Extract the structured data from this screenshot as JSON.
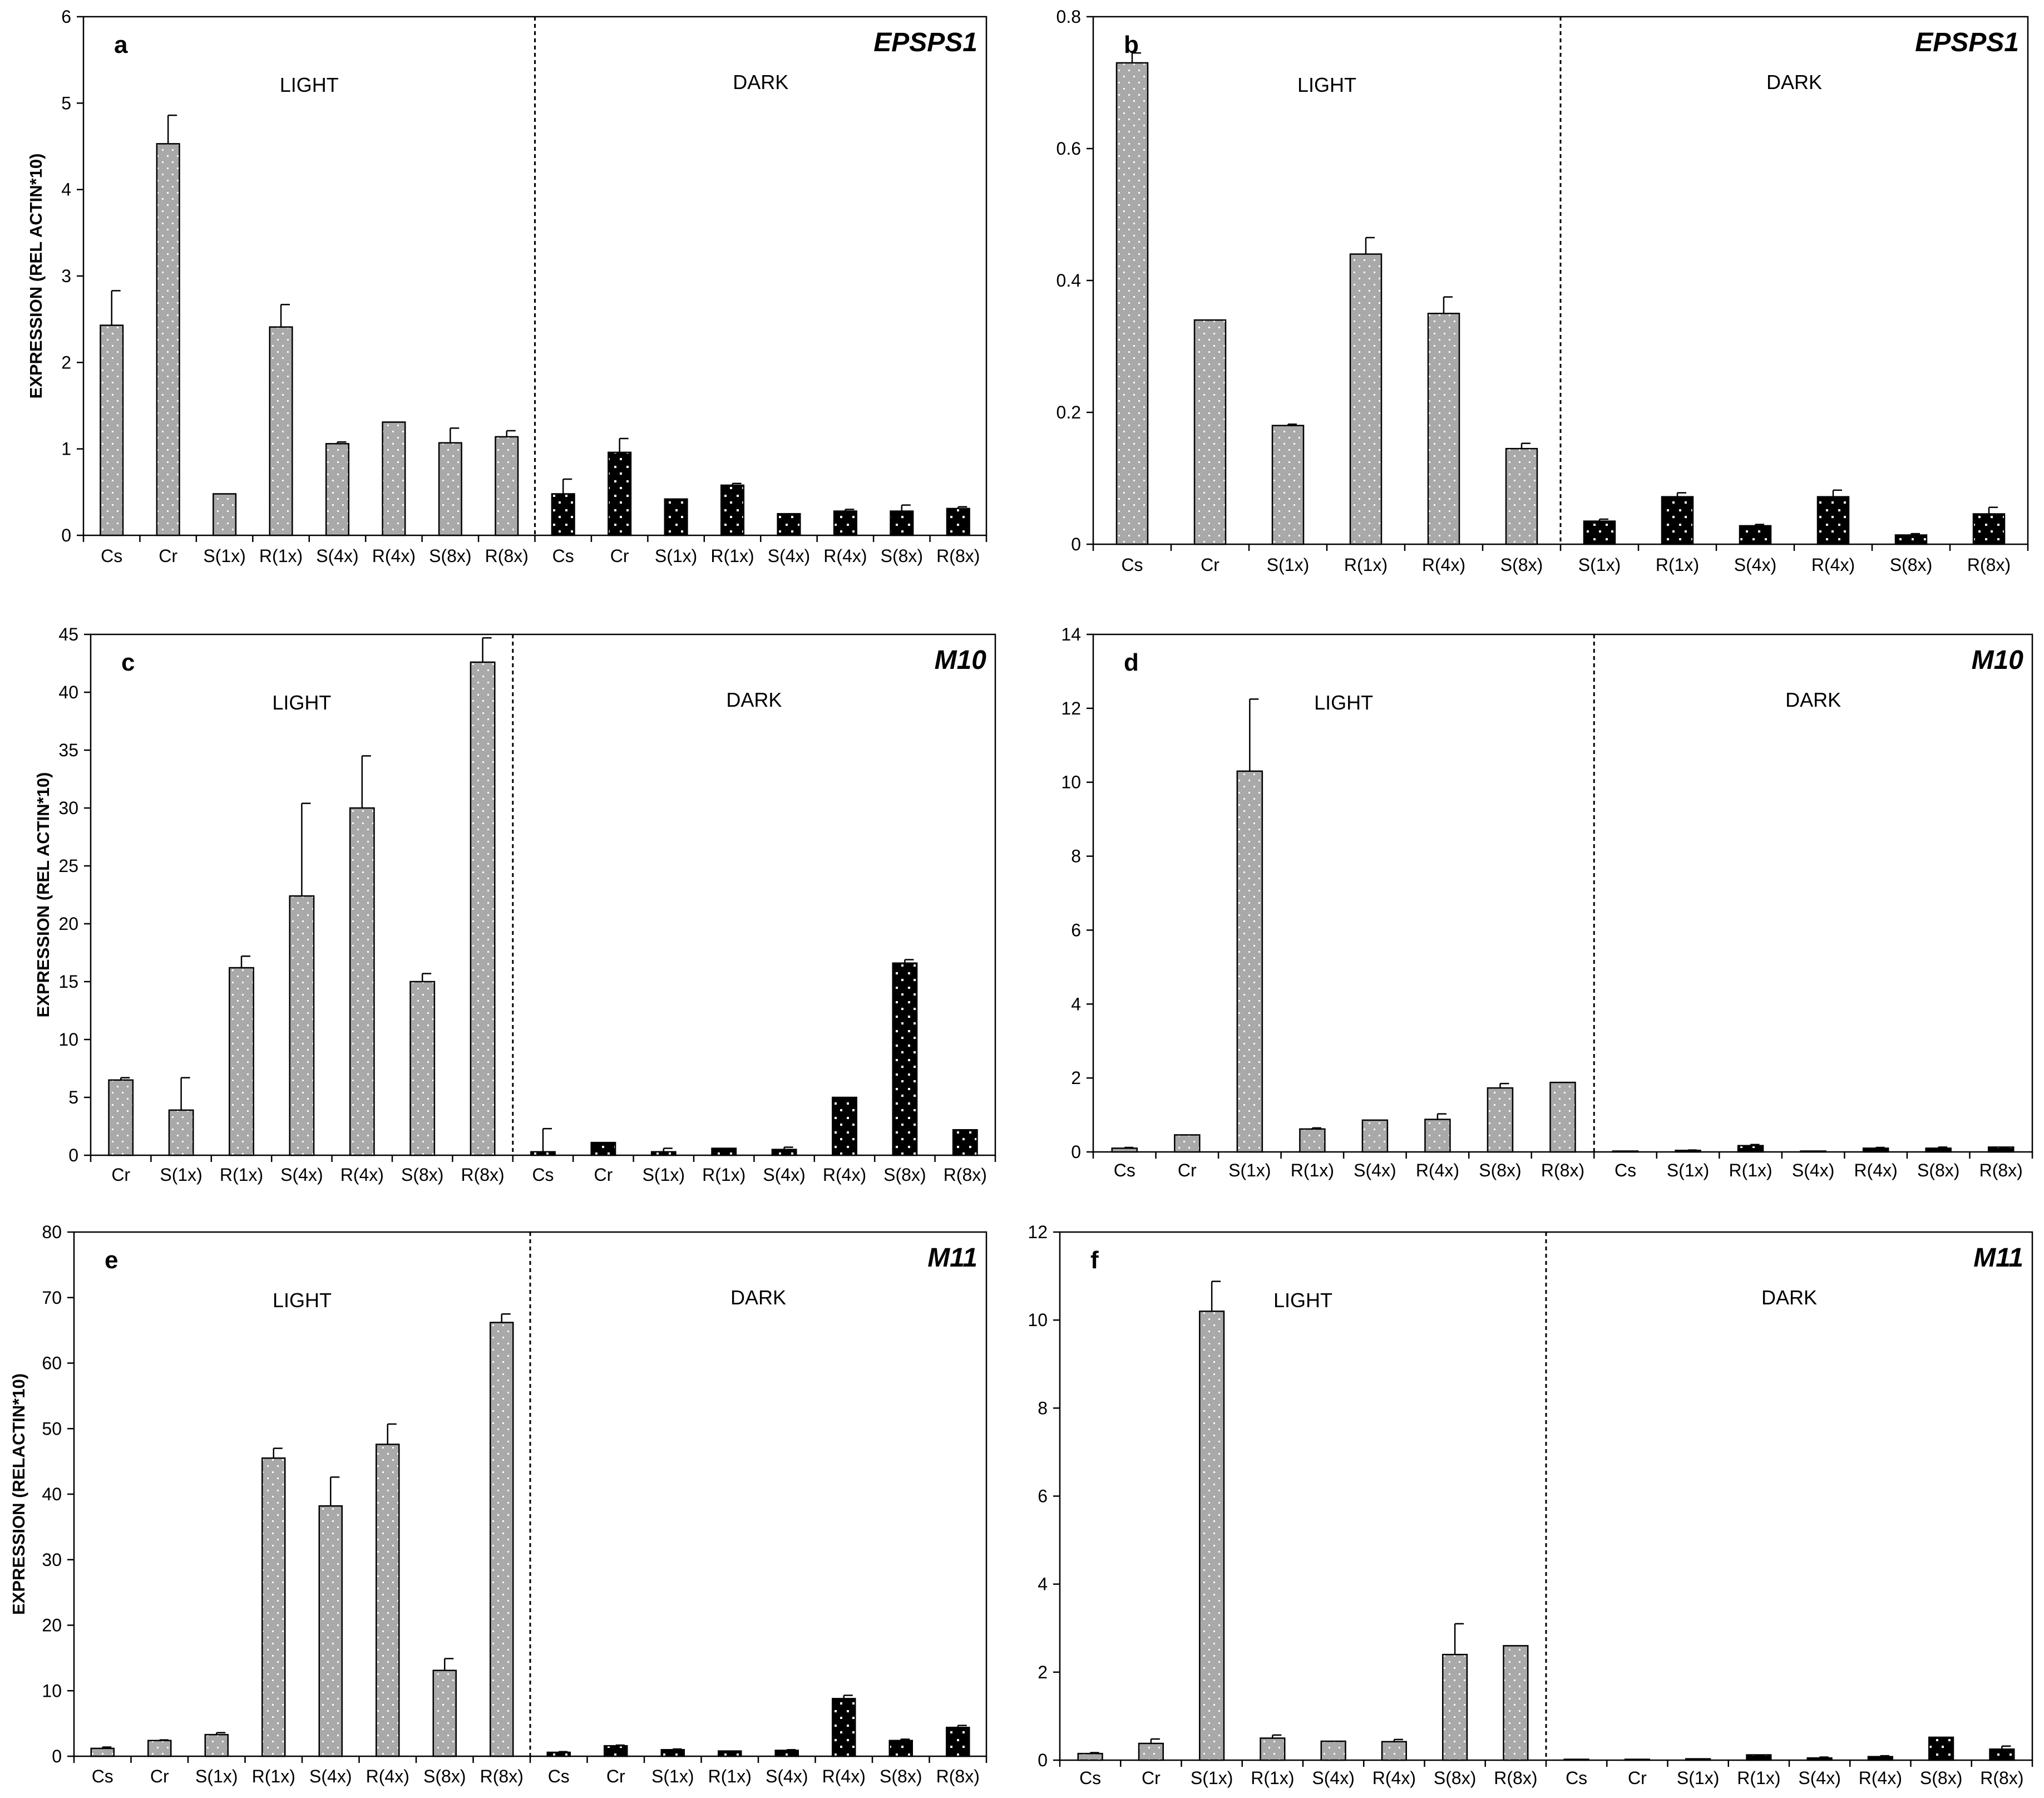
{
  "colors": {
    "light_bar": "#a9a9a9",
    "dark_bar": "#000000",
    "dot": "#ffffff",
    "axis": "#000000"
  },
  "chart_data": [
    {
      "panel": "a",
      "gene": "EPSPS1",
      "type": "bar",
      "ylabel": "EXPRESSION (REL ACTIN*10)",
      "ylim": [
        0,
        6
      ],
      "yticks": [
        "0",
        "1",
        "2",
        "3",
        "4",
        "5",
        "6"
      ],
      "light_label": "LIGHT",
      "dark_label": "DARK",
      "categories": [
        "Cs",
        "Cr",
        "S(1x)",
        "R(1x)",
        "S(4x)",
        "R(4x)",
        "S(8x)",
        "R(8x)",
        "Cs",
        "Cr",
        "S(1x)",
        "R(1x)",
        "S(4x)",
        "R(4x)",
        "S(8x)",
        "R(8x)"
      ],
      "light_count": 8,
      "values": [
        2.43,
        4.53,
        0.48,
        2.41,
        1.06,
        1.31,
        1.07,
        1.14,
        0.48,
        0.96,
        0.42,
        0.58,
        0.25,
        0.28,
        0.28,
        0.31
      ],
      "errors": [
        0.4,
        0.33,
        0.0,
        0.26,
        0.02,
        0.0,
        0.17,
        0.07,
        0.17,
        0.16,
        0.0,
        0.02,
        0.0,
        0.02,
        0.07,
        0.02
      ]
    },
    {
      "panel": "b",
      "gene": "EPSPS1",
      "type": "bar",
      "ylabel": "",
      "ylim": [
        0,
        0.8
      ],
      "yticks": [
        "0",
        "0.2",
        "0.4",
        "0.6",
        "0.8"
      ],
      "light_label": "LIGHT",
      "dark_label": "DARK",
      "categories": [
        "Cs",
        "Cr",
        "S(1x)",
        "R(1x)",
        "R(4x)",
        "S(8x)",
        "S(1x)",
        "R(1x)",
        "S(4x)",
        "R(4x)",
        "S(8x)",
        "R(8x)"
      ],
      "light_count": 6,
      "values": [
        0.73,
        0.34,
        0.18,
        0.44,
        0.35,
        0.145,
        0.035,
        0.072,
        0.028,
        0.072,
        0.014,
        0.046
      ],
      "errors": [
        0.015,
        0.0,
        0.002,
        0.025,
        0.025,
        0.008,
        0.003,
        0.006,
        0.002,
        0.01,
        0.002,
        0.01
      ]
    },
    {
      "panel": "c",
      "gene": "M10",
      "type": "bar",
      "ylabel": "EXPRESSION (REL ACTIN*10)",
      "ylim": [
        0,
        45
      ],
      "yticks": [
        "0",
        "5",
        "10",
        "15",
        "20",
        "25",
        "30",
        "35",
        "40",
        "45"
      ],
      "light_label": "LIGHT",
      "dark_label": "DARK",
      "categories": [
        "Cr",
        "S(1x)",
        "R(1x)",
        "S(4x)",
        "R(4x)",
        "S(8x)",
        "R(8x)",
        "Cs",
        "Cr",
        "S(1x)",
        "R(1x)",
        "S(4x)",
        "R(4x)",
        "S(8x)",
        "R(8x)"
      ],
      "light_count": 7,
      "values": [
        6.5,
        3.9,
        16.2,
        22.4,
        30.0,
        15.0,
        42.6,
        0.3,
        1.1,
        0.3,
        0.6,
        0.5,
        5.0,
        16.6,
        2.2
      ],
      "errors": [
        0.2,
        2.8,
        1.0,
        8.0,
        4.5,
        0.7,
        2.1,
        2.0,
        0.0,
        0.3,
        0.0,
        0.2,
        0.0,
        0.3,
        0.0
      ]
    },
    {
      "panel": "d",
      "gene": "M10",
      "type": "bar",
      "ylabel": "",
      "ylim": [
        0,
        14
      ],
      "yticks": [
        "0",
        "2",
        "4",
        "6",
        "8",
        "10",
        "12",
        "14"
      ],
      "light_label": "LIGHT",
      "dark_label": "DARK",
      "categories": [
        "Cs",
        "Cr",
        "S(1x)",
        "R(1x)",
        "S(4x)",
        "R(4x)",
        "S(8x)",
        "R(8x)",
        "Cs",
        "S(1x)",
        "R(1x)",
        "S(4x)",
        "R(4x)",
        "S(8x)",
        "R(8x)"
      ],
      "light_count": 8,
      "values": [
        0.1,
        0.46,
        10.3,
        0.62,
        0.86,
        0.88,
        1.73,
        1.88,
        0.01,
        0.04,
        0.17,
        0.01,
        0.1,
        0.1,
        0.13
      ],
      "errors": [
        0.02,
        0.0,
        1.95,
        0.03,
        0.0,
        0.15,
        0.12,
        0.0,
        0.0,
        0.01,
        0.03,
        0.0,
        0.02,
        0.03,
        0.0
      ]
    },
    {
      "panel": "e",
      "gene": "M11",
      "type": "bar",
      "ylabel": "EXPRESSION (RELACTIN*10)",
      "ylim": [
        0,
        80
      ],
      "yticks": [
        "0",
        "10",
        "20",
        "30",
        "40",
        "50",
        "60",
        "70",
        "80"
      ],
      "light_label": "LIGHT",
      "dark_label": "DARK",
      "categories": [
        "Cs",
        "Cr",
        "S(1x)",
        "R(1x)",
        "S(4x)",
        "R(4x)",
        "S(8x)",
        "R(8x)",
        "Cs",
        "Cr",
        "S(1x)",
        "R(1x)",
        "S(4x)",
        "R(4x)",
        "S(8x)",
        "R(8x)"
      ],
      "light_count": 8,
      "values": [
        1.2,
        2.4,
        3.3,
        45.5,
        38.2,
        47.6,
        13.1,
        66.2,
        0.6,
        1.6,
        1.0,
        0.8,
        0.9,
        8.8,
        2.4,
        4.4
      ],
      "errors": [
        0.2,
        0.1,
        0.3,
        1.5,
        4.4,
        3.1,
        1.8,
        1.3,
        0.1,
        0.1,
        0.1,
        0.0,
        0.1,
        0.5,
        0.2,
        0.3
      ]
    },
    {
      "panel": "f",
      "gene": "M11",
      "type": "bar",
      "ylabel": "",
      "ylim": [
        0,
        12
      ],
      "yticks": [
        "0",
        "2",
        "4",
        "6",
        "8",
        "10",
        "12"
      ],
      "light_label": "LIGHT",
      "dark_label": "DARK",
      "categories": [
        "Cs",
        "Cr",
        "S(1x)",
        "R(1x)",
        "S(4x)",
        "R(4x)",
        "S(8x)",
        "R(8x)",
        "Cs",
        "Cr",
        "S(1x)",
        "R(1x)",
        "S(4x)",
        "R(4x)",
        "S(8x)",
        "R(8x)"
      ],
      "light_count": 8,
      "values": [
        0.15,
        0.38,
        10.2,
        0.5,
        0.43,
        0.42,
        2.4,
        2.6,
        0.01,
        0.0,
        0.03,
        0.12,
        0.05,
        0.08,
        0.52,
        0.25
      ],
      "errors": [
        0.02,
        0.1,
        0.68,
        0.07,
        0.0,
        0.05,
        0.7,
        0.0,
        0.0,
        0.0,
        0.0,
        0.0,
        0.02,
        0.02,
        0.0,
        0.07
      ]
    }
  ]
}
